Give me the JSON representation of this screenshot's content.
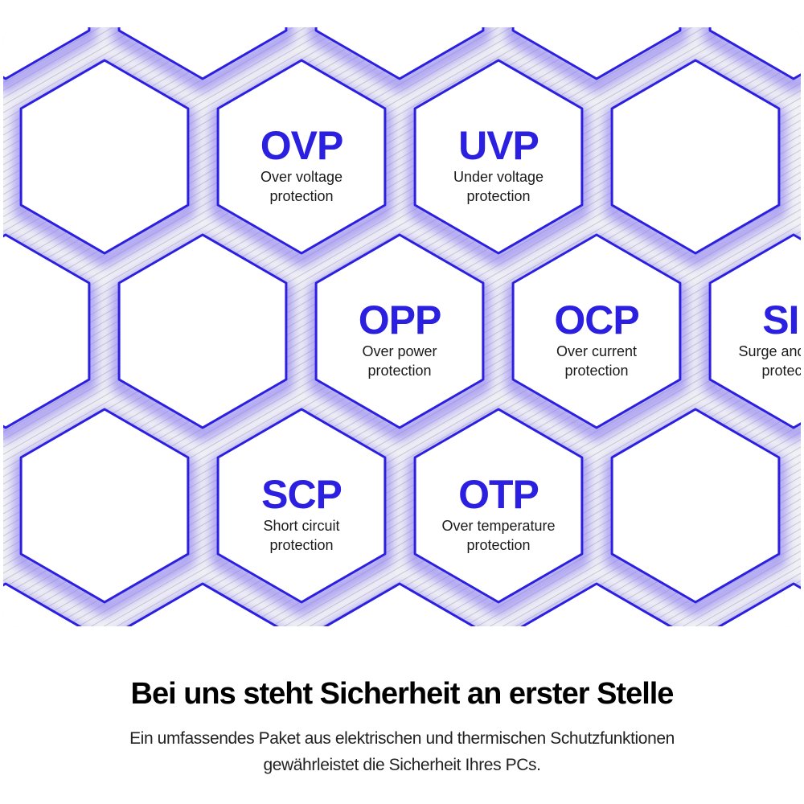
{
  "colors": {
    "accent": "#2b1fe0",
    "glow": "#8a7cf0",
    "panel": "#f1f1f5"
  },
  "protections": [
    {
      "code": "OVP",
      "desc1": "Over voltage",
      "desc2": "protection"
    },
    {
      "code": "UVP",
      "desc1": "Under voltage",
      "desc2": "protection"
    },
    {
      "code": "OPP",
      "desc1": "Over power",
      "desc2": "protection"
    },
    {
      "code": "OCP",
      "desc1": "Over current",
      "desc2": "protection"
    },
    {
      "code": "SIP",
      "desc1": "Surge and inrush",
      "desc2": "protection"
    },
    {
      "code": "SCP",
      "desc1": "Short circuit",
      "desc2": "protection"
    },
    {
      "code": "OTP",
      "desc1": "Over temperature",
      "desc2": "protection"
    }
  ],
  "footer": {
    "title": "Bei uns steht Sicherheit an erster Stelle",
    "subtitle_line1": "Ein umfassendes Paket aus elektrischen und thermischen Schutzfunktionen",
    "subtitle_line2": "gewährleistet die Sicherheit Ihres PCs."
  }
}
